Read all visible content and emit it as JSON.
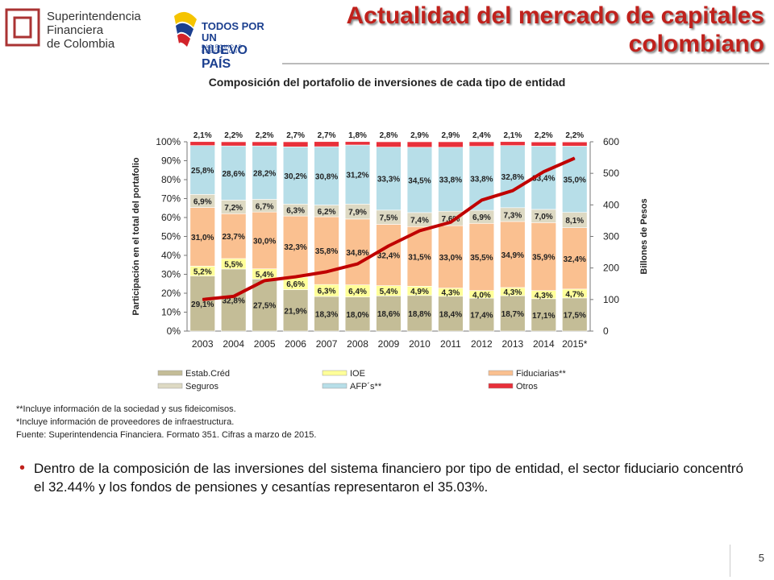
{
  "header": {
    "org_line1": "Superintendencia",
    "org_line2": "Financiera",
    "org_line3": "de Colombia",
    "campaign_line1": "TODOS POR UN",
    "campaign_line2": "NUEVO PAÍS",
    "campaign_tagline": "PAZ  EQUIDAD  EDUCACIÓN",
    "title_line1": "Actualidad del mercado de capitales",
    "title_line2": "colombiano"
  },
  "notes": [
    "**Incluye información de la sociedad y sus fideicomisos.",
    "*Incluye información de proveedores de infraestructura.",
    "Fuente: Superintendencia Financiera. Formato 351. Cifras a marzo de 2015."
  ],
  "bullet": "Dentro de la composición de las inversiones del sistema financiero por tipo de entidad, el sector fiduciario concentró el 32.44% y los fondos de pensiones y cesantías representaron el 35.03%.",
  "page_number": "5",
  "colors": {
    "estab": "#c4bd97",
    "ioe": "#ffff99",
    "fiduciarias": "#fac090",
    "seguros": "#ddd9c3",
    "afp": "#b7dee8",
    "otros": "#e8303a",
    "line": "#c00000"
  },
  "chart_data": {
    "type": "bar",
    "stacked": true,
    "title": "Composición del portafolio de inversiones de cada tipo de entidad",
    "ylabel": "Participación en el total del portafolio",
    "y2label": "Billones de Pesos",
    "ylim": [
      0,
      100
    ],
    "y2lim": [
      0,
      600
    ],
    "yticks": [
      "0%",
      "10%",
      "20%",
      "30%",
      "40%",
      "50%",
      "60%",
      "70%",
      "80%",
      "90%",
      "100%"
    ],
    "y2ticks": [
      "0",
      "100",
      "200",
      "300",
      "400",
      "500",
      "600"
    ],
    "categories": [
      "2003",
      "2004",
      "2005",
      "2006",
      "2007",
      "2008",
      "2009",
      "2010",
      "2011",
      "2012",
      "2013",
      "2014",
      "2015*"
    ],
    "series": [
      {
        "name": "Estab.Créd",
        "key": "estab",
        "values": [
          29.1,
          32.8,
          27.5,
          21.9,
          18.3,
          18.0,
          18.6,
          18.8,
          18.4,
          17.4,
          18.7,
          17.1,
          17.5
        ],
        "labels": [
          "29,1%",
          "32,8%",
          "27,5%",
          "21,9%",
          "18,3%",
          "18,0%",
          "18,6%",
          "18,8%",
          "18,4%",
          "17,4%",
          "18,7%",
          "17,1%",
          "17,5%"
        ]
      },
      {
        "name": "IOE",
        "key": "ioe",
        "values": [
          5.2,
          5.5,
          5.4,
          6.6,
          6.3,
          6.4,
          5.4,
          4.9,
          4.3,
          4.0,
          4.3,
          4.3,
          4.7
        ],
        "labels": [
          "5,2%",
          "5,5%",
          "5,4%",
          "6,6%",
          "6,3%",
          "6,4%",
          "5,4%",
          "4,9%",
          "4,3%",
          "4,0%",
          "4,3%",
          "4,3%",
          "4,7%"
        ]
      },
      {
        "name": "Fiduciarias**",
        "key": "fiduciarias",
        "values": [
          31.0,
          23.7,
          30.0,
          32.3,
          35.8,
          34.8,
          32.4,
          31.5,
          33.0,
          35.5,
          34.9,
          35.9,
          32.4
        ],
        "labels": [
          "31,0%",
          "23,7%",
          "30,0%",
          "32,3%",
          "35,8%",
          "34,8%",
          "32,4%",
          "31,5%",
          "33,0%",
          "35,5%",
          "34,9%",
          "35,9%",
          "32,4%"
        ]
      },
      {
        "name": "Seguros",
        "key": "seguros",
        "values": [
          6.9,
          7.2,
          6.7,
          6.3,
          6.2,
          7.9,
          7.5,
          7.4,
          7.6,
          6.9,
          7.3,
          7.0,
          8.1
        ],
        "labels": [
          "6,9%",
          "7,2%",
          "6,7%",
          "6,3%",
          "6,2%",
          "7,9%",
          "7,5%",
          "7,4%",
          "7,6%",
          "6,9%",
          "7,3%",
          "7,0%",
          "8,1%"
        ]
      },
      {
        "name": "AFP´s**",
        "key": "afp",
        "values": [
          25.8,
          28.6,
          28.2,
          30.2,
          30.8,
          31.2,
          33.3,
          34.5,
          33.8,
          33.8,
          32.8,
          33.4,
          35.0
        ],
        "labels": [
          "25,8%",
          "28,6%",
          "28,2%",
          "30,2%",
          "30,8%",
          "31,2%",
          "33,3%",
          "34,5%",
          "33,8%",
          "33,8%",
          "32,8%",
          "33,4%",
          "35,0%"
        ]
      },
      {
        "name": "Otros",
        "key": "otros",
        "values": [
          2.1,
          2.2,
          2.2,
          2.7,
          2.7,
          1.8,
          2.8,
          2.9,
          2.9,
          2.4,
          2.1,
          2.2,
          2.2
        ],
        "labels": [
          "2,1%",
          "2,2%",
          "2,2%",
          "2,7%",
          "2,7%",
          "1,8%",
          "2,8%",
          "2,9%",
          "2,9%",
          "2,4%",
          "2,1%",
          "2,2%",
          "2,2%"
        ]
      }
    ],
    "line_series": {
      "axis": "y2",
      "values": [
        100,
        110,
        160,
        172,
        188,
        213,
        270,
        318,
        345,
        415,
        445,
        505,
        548
      ]
    },
    "legend": [
      "Estab.Créd",
      "IOE",
      "Fiduciarias**",
      "Seguros",
      "AFP´s**",
      "Otros"
    ],
    "legend_placement": "bottom",
    "grid": false
  }
}
